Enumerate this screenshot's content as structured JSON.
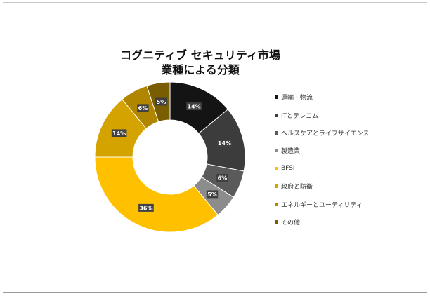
{
  "chart_data": {
    "type": "donut",
    "title": [
      "コグニティブ セキュリティ市場",
      "業種による分類"
    ],
    "categories": [
      "運輸・物流",
      "ITとテレコム",
      "ヘルスケアとライフサイエンス",
      "製造業",
      "BFSI",
      "政府と防衛",
      "エネルギーとユーティリティ",
      "その他"
    ],
    "values": [
      14,
      14,
      6,
      5,
      36,
      14,
      6,
      5
    ],
    "data_labels": [
      "14%",
      "14%",
      "6%",
      "5%",
      "36%",
      "14%",
      "6%",
      "5%"
    ],
    "colors": [
      "#141414",
      "#3c3c3c",
      "#5a5a5a",
      "#8c8c8c",
      "#ffc000",
      "#d4a300",
      "#b08600",
      "#7a5d00"
    ],
    "legend_position": "right"
  }
}
